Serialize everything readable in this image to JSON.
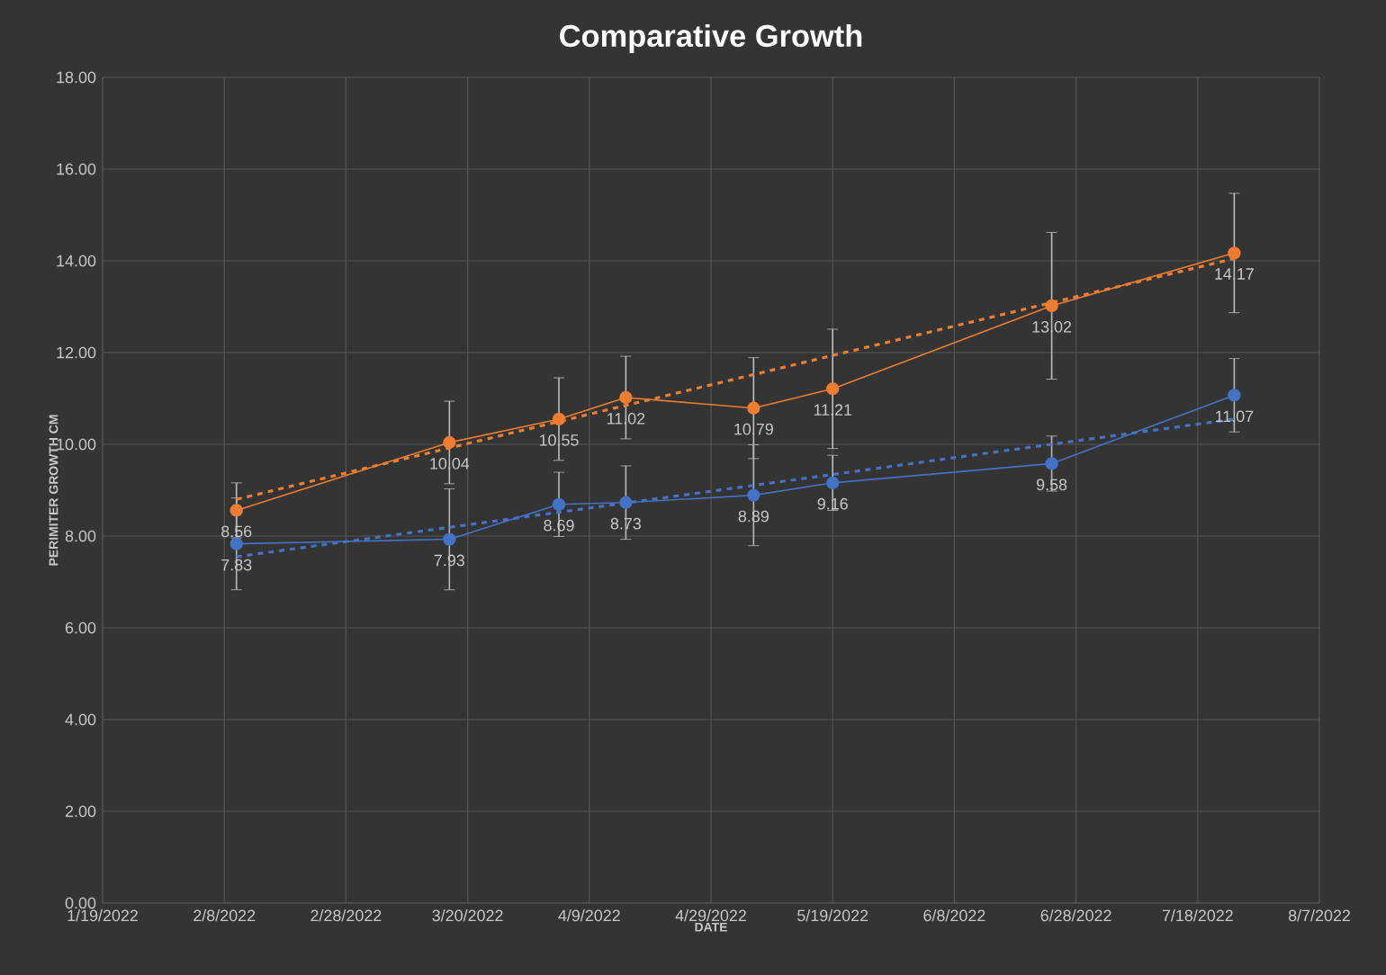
{
  "chart_data": {
    "type": "line",
    "title": "Comparative Growth",
    "xlabel": "DATE",
    "ylabel": "PERIMITER GROWTH CM",
    "xlim": [
      "2022-01-19",
      "2022-08-07"
    ],
    "xticks": [
      {
        "value": "2022-01-19",
        "label": "1/19/2022"
      },
      {
        "value": "2022-02-08",
        "label": "2/8/2022"
      },
      {
        "value": "2022-02-28",
        "label": "2/28/2022"
      },
      {
        "value": "2022-03-20",
        "label": "3/20/2022"
      },
      {
        "value": "2022-04-09",
        "label": "4/9/2022"
      },
      {
        "value": "2022-04-29",
        "label": "4/29/2022"
      },
      {
        "value": "2022-05-19",
        "label": "5/19/2022"
      },
      {
        "value": "2022-06-08",
        "label": "6/8/2022"
      },
      {
        "value": "2022-06-28",
        "label": "6/28/2022"
      },
      {
        "value": "2022-07-18",
        "label": "7/18/2022"
      },
      {
        "value": "2022-08-07",
        "label": "8/7/2022"
      }
    ],
    "ylim": [
      0,
      18
    ],
    "yticks": [
      {
        "value": 0,
        "label": "0.00"
      },
      {
        "value": 2,
        "label": "2.00"
      },
      {
        "value": 4,
        "label": "4.00"
      },
      {
        "value": 6,
        "label": "6.00"
      },
      {
        "value": 8,
        "label": "8.00"
      },
      {
        "value": 10,
        "label": "10.00"
      },
      {
        "value": 12,
        "label": "12.00"
      },
      {
        "value": 14,
        "label": "14.00"
      },
      {
        "value": 16,
        "label": "16.00"
      },
      {
        "value": 18,
        "label": "18.00"
      }
    ],
    "grid": true,
    "series": [
      {
        "color": "#ed7d31",
        "marker": "circle",
        "line_style": "solid",
        "x": [
          "2022-02-10",
          "2022-03-17",
          "2022-04-04",
          "2022-04-15",
          "2022-05-06",
          "2022-05-19",
          "2022-06-24",
          "2022-07-24"
        ],
        "values": [
          8.56,
          10.04,
          10.55,
          11.02,
          10.79,
          11.21,
          13.02,
          14.17
        ],
        "value_labels": [
          "8.56",
          "10.04",
          "10.55",
          "11.02",
          "10.79",
          "11.21",
          "13.02",
          "14.17"
        ],
        "errors": [
          0.6,
          0.9,
          0.9,
          0.9,
          1.1,
          1.3,
          1.6,
          1.3
        ]
      },
      {
        "color": "#4472c4",
        "marker": "circle",
        "line_style": "solid",
        "x": [
          "2022-02-10",
          "2022-03-17",
          "2022-04-04",
          "2022-04-15",
          "2022-05-06",
          "2022-05-19",
          "2022-06-24",
          "2022-07-24"
        ],
        "values": [
          7.83,
          7.93,
          8.69,
          8.73,
          8.89,
          9.16,
          9.58,
          11.07
        ],
        "value_labels": [
          "7.83",
          "7.93",
          "8.69",
          "8.73",
          "8.89",
          "9.16",
          "9.58",
          "11.07"
        ],
        "errors": [
          1.0,
          1.1,
          0.7,
          0.8,
          1.1,
          0.6,
          0.6,
          0.8
        ]
      },
      {
        "color": "#ed7d31",
        "marker": "none",
        "line_style": "dashed",
        "x": [
          "2022-02-10",
          "2022-07-24"
        ],
        "values": [
          8.8,
          14.05
        ]
      },
      {
        "color": "#4472c4",
        "marker": "none",
        "line_style": "dashed",
        "x": [
          "2022-02-10",
          "2022-07-24"
        ],
        "values": [
          7.55,
          10.55
        ]
      }
    ]
  }
}
